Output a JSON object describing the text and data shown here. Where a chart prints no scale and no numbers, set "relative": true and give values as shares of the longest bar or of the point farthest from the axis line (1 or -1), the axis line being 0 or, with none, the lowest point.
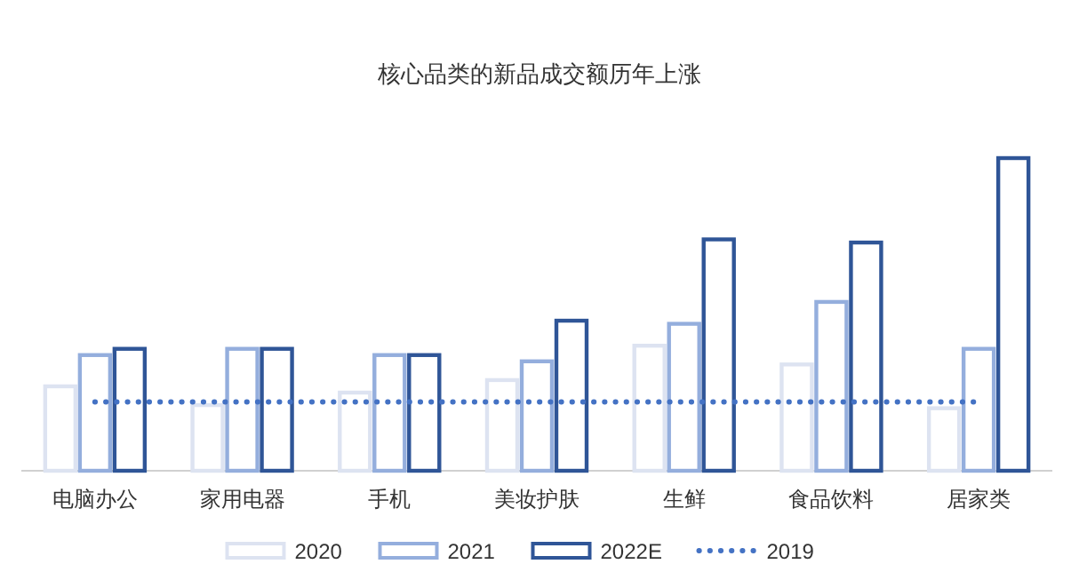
{
  "chart_data": {
    "type": "bar",
    "title": "核心品类的新品成交额历年上涨",
    "relative": true,
    "legend": "bottom",
    "categories": [
      "电脑办公",
      "家用电器",
      "手机",
      "美妆护肤",
      "生鲜",
      "食品饮料",
      "居家类"
    ],
    "series": [
      {
        "name": "2020",
        "color": "#dde3f1",
        "values": [
          0.27,
          0.21,
          0.25,
          0.29,
          0.4,
          0.34,
          0.2
        ]
      },
      {
        "name": "2021",
        "color": "#94aedd",
        "values": [
          0.37,
          0.39,
          0.37,
          0.35,
          0.47,
          0.54,
          0.39
        ]
      },
      {
        "name": "2022E",
        "color": "#2f5597",
        "values": [
          0.39,
          0.39,
          0.37,
          0.48,
          0.74,
          0.73,
          1
        ]
      },
      {
        "name": "2019",
        "type": "line",
        "line_style": "dotted",
        "color": "#4472c4",
        "values": [
          0.22,
          0.22,
          0.22,
          0.22,
          0.22,
          0.22,
          0.22
        ]
      }
    ]
  }
}
